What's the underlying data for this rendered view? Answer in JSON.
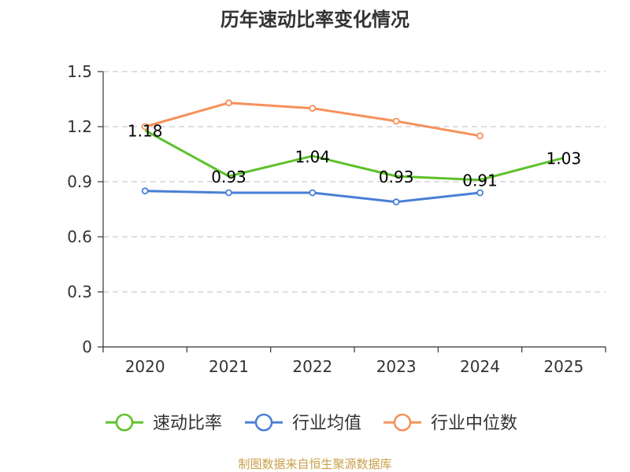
{
  "chart_data": {
    "type": "line",
    "title": "历年速动比率变化情况",
    "categories": [
      "2020",
      "2021",
      "2022",
      "2023",
      "2024",
      "2025"
    ],
    "ylim": [
      0,
      1.5
    ],
    "yticks": [
      "0",
      "0.3",
      "0.6",
      "0.9",
      "1.2",
      "1.5"
    ],
    "grid": true,
    "legend_position": "bottom",
    "series": [
      {
        "name": "速动比率",
        "color": "#5ec12a",
        "values": [
          1.18,
          0.93,
          1.04,
          0.93,
          0.91,
          1.03
        ],
        "labels": [
          "1.18",
          "0.93",
          "1.04",
          "0.93",
          "0.91",
          "1.03"
        ],
        "show_markers": false
      },
      {
        "name": "行业均值",
        "color": "#4a7fd6",
        "values": [
          0.85,
          0.84,
          0.84,
          0.79,
          0.84,
          null
        ],
        "show_markers": true
      },
      {
        "name": "行业中位数",
        "color": "#f7905a",
        "values": [
          1.2,
          1.33,
          1.3,
          1.23,
          1.15,
          null
        ],
        "show_markers": true
      }
    ]
  },
  "source_text": "制图数据来自恒生聚源数据库",
  "colors": {
    "axis": "#333333",
    "grid": "#cccccc",
    "source": "#c9a04a"
  }
}
